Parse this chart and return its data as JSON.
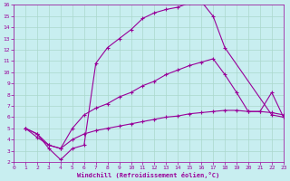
{
  "xlabel": "Windchill (Refroidissement éolien,°C)",
  "xlim": [
    0,
    23
  ],
  "ylim": [
    2,
    16
  ],
  "xticks": [
    0,
    1,
    2,
    3,
    4,
    5,
    6,
    7,
    8,
    9,
    10,
    11,
    12,
    13,
    14,
    15,
    16,
    17,
    18,
    19,
    20,
    21,
    22,
    23
  ],
  "yticks": [
    2,
    3,
    4,
    5,
    6,
    7,
    8,
    9,
    10,
    11,
    12,
    13,
    14,
    15,
    16
  ],
  "bg_color": "#c8eef0",
  "line_color": "#990099",
  "grid_color": "#aad8cc",
  "lines": [
    {
      "x": [
        1,
        2,
        3,
        4,
        5,
        6,
        7,
        8,
        9,
        10,
        11,
        12,
        13,
        14,
        15,
        16,
        17,
        18,
        22,
        23
      ],
      "y": [
        5.0,
        4.5,
        3.2,
        2.2,
        3.2,
        3.5,
        10.8,
        12.2,
        13.0,
        13.8,
        14.8,
        15.3,
        15.6,
        15.8,
        16.2,
        16.3,
        15.0,
        12.2,
        6.2,
        6.0
      ]
    },
    {
      "x": [
        1,
        2,
        3,
        4,
        5,
        6,
        7,
        8,
        9,
        10,
        11,
        12,
        13,
        14,
        15,
        16,
        17,
        18,
        19,
        20,
        21,
        22,
        23
      ],
      "y": [
        5.0,
        4.5,
        3.5,
        3.2,
        5.0,
        6.2,
        6.8,
        7.2,
        7.8,
        8.2,
        8.8,
        9.2,
        9.8,
        10.2,
        10.6,
        10.9,
        11.2,
        9.8,
        8.2,
        6.5,
        6.5,
        8.2,
        6.0
      ]
    },
    {
      "x": [
        1,
        2,
        3,
        4,
        5,
        6,
        7,
        8,
        9,
        10,
        11,
        12,
        13,
        14,
        15,
        16,
        17,
        18,
        19,
        20,
        21,
        22,
        23
      ],
      "y": [
        5.0,
        4.2,
        3.5,
        3.2,
        4.0,
        4.5,
        4.8,
        5.0,
        5.2,
        5.4,
        5.6,
        5.8,
        6.0,
        6.1,
        6.3,
        6.4,
        6.5,
        6.6,
        6.6,
        6.5,
        6.5,
        6.4,
        6.2
      ]
    }
  ]
}
